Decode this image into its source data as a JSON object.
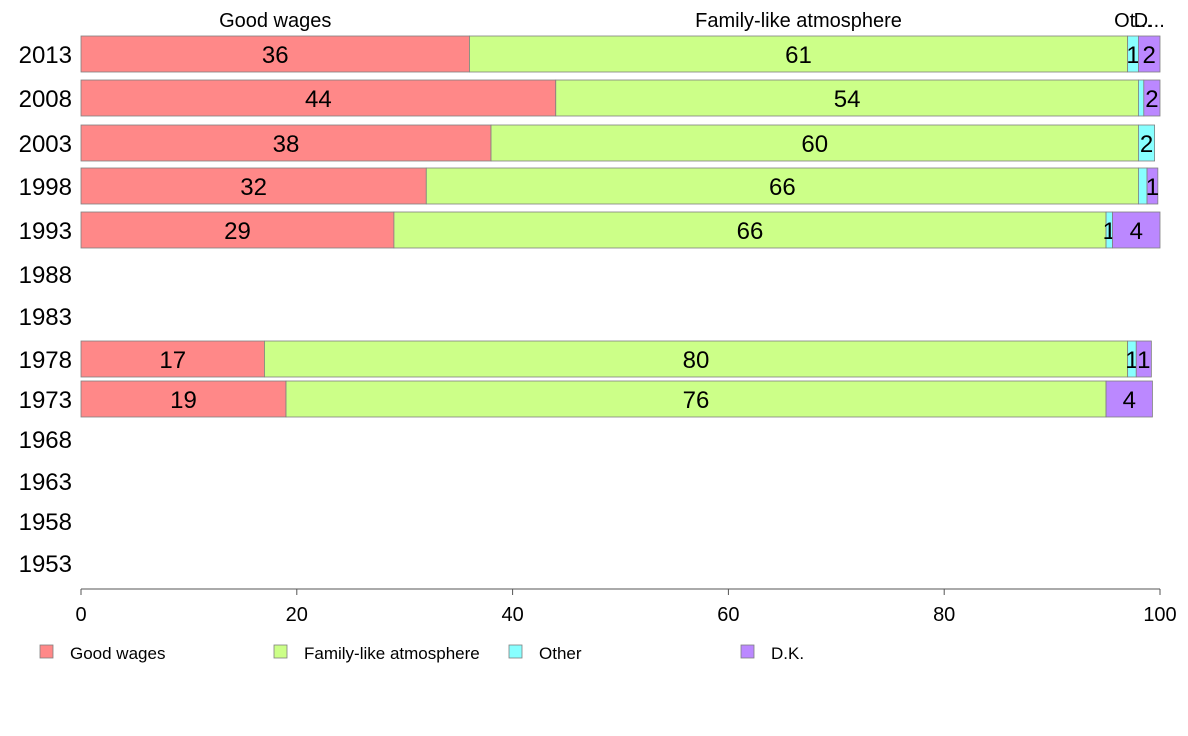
{
  "chart_data": {
    "type": "bar",
    "orientation": "horizontal",
    "stacked": true,
    "title": "",
    "xlabel": "",
    "ylabel": "",
    "xlim": [
      0,
      100
    ],
    "x_ticks": [
      "0",
      "20",
      "40",
      "60",
      "80",
      "100"
    ],
    "grid": false,
    "legend_position": "bottom",
    "categories": [
      "2013",
      "2008",
      "2003",
      "1998",
      "1993",
      "1988",
      "1983",
      "1978",
      "1973",
      "1968",
      "1963",
      "1958",
      "1953"
    ],
    "top_labels": [
      "Good wages",
      "Family-like atmosphere",
      "Ot...",
      "D..."
    ],
    "series": [
      {
        "name": "Good wages",
        "color": "#ff8888",
        "values": [
          36,
          44,
          38,
          32,
          29,
          null,
          null,
          17,
          19,
          null,
          null,
          null,
          null
        ],
        "labels": [
          "36",
          "44",
          "38",
          "32",
          "29",
          "",
          "",
          "17",
          "19",
          "",
          "",
          "",
          ""
        ]
      },
      {
        "name": "Family-like atmosphere",
        "color": "#ccff88",
        "values": [
          61,
          54,
          60,
          66,
          66,
          null,
          null,
          80,
          76,
          null,
          null,
          null,
          null
        ],
        "labels": [
          "61",
          "54",
          "60",
          "66",
          "66",
          "",
          "",
          "80",
          "76",
          "",
          "",
          "",
          ""
        ]
      },
      {
        "name": "Other",
        "color": "#88ffff",
        "values": [
          1,
          0.5,
          1.5,
          0.8,
          0.6,
          null,
          null,
          0.8,
          0,
          null,
          null,
          null,
          null
        ],
        "labels": [
          "1",
          "",
          "2",
          "",
          "1",
          "",
          "",
          "1",
          "",
          "",
          "",
          "",
          ""
        ]
      },
      {
        "name": "D.K.",
        "color": "#bb88ff",
        "values": [
          2,
          1.5,
          0,
          1,
          4.4,
          null,
          null,
          1.4,
          4.3,
          null,
          null,
          null,
          null
        ],
        "labels": [
          "2",
          "2",
          "",
          "1",
          "4",
          "",
          "",
          "1",
          "4",
          "",
          "",
          "",
          ""
        ]
      }
    ]
  }
}
